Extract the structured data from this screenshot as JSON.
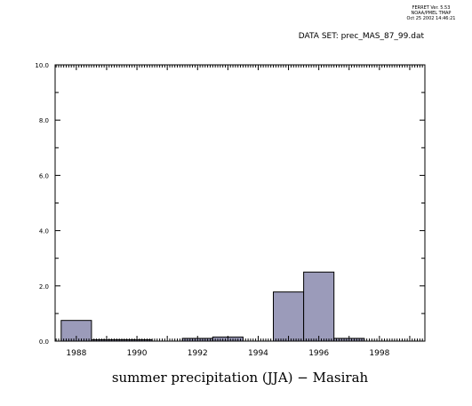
{
  "header": {
    "ferret_line1": "FERRET Ver. 5.53",
    "ferret_line2": "NOAA/PMEL TMAP",
    "ferret_line3": "Oct 25 2002 14:46:21",
    "dataset_label": "DATA SET: prec_MAS_87_99.dat"
  },
  "chart_data": {
    "type": "bar",
    "title": "",
    "xlabel": "summer precipitation (JJA) − Masirah",
    "ylabel": "",
    "xlim": [
      1987.3,
      1999.5
    ],
    "ylim": [
      0,
      10
    ],
    "x_ticks": [
      "1988",
      "1990",
      "1992",
      "1994",
      "1996",
      "1998"
    ],
    "y_ticks": [
      "0.0",
      "2.0",
      "4.0",
      "6.0",
      "8.0",
      "10.0"
    ],
    "x": [
      1988,
      1989,
      1990,
      1991,
      1992,
      1993,
      1994,
      1995,
      1996,
      1997,
      1998
    ],
    "values": [
      0.75,
      0.05,
      0.05,
      0.0,
      0.1,
      0.15,
      0.0,
      1.78,
      2.5,
      0.1,
      0.0
    ],
    "bar_color": "#9b9bba",
    "grid": false,
    "legend": "none"
  }
}
